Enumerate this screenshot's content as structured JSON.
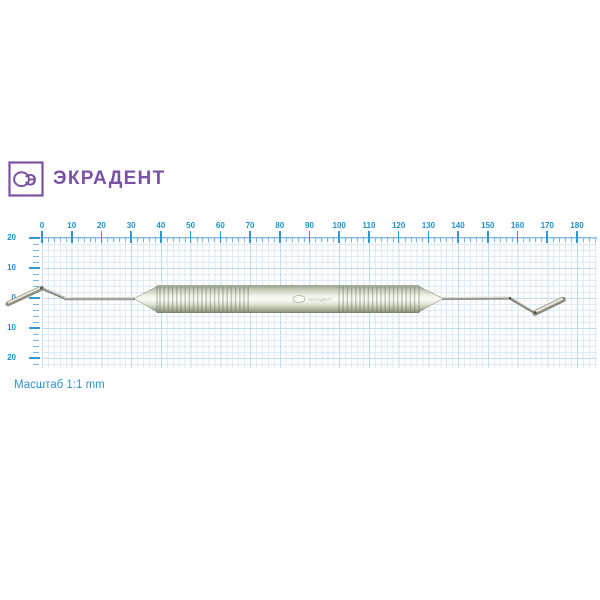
{
  "logo": {
    "text": "ЭКРАДЕНТ",
    "icon_glyph": "Э",
    "color": "#7b51a6"
  },
  "ruler": {
    "unit": "mm",
    "horizontal": {
      "labels": [
        "0",
        "10",
        "20",
        "30",
        "40",
        "50",
        "60",
        "70",
        "80",
        "90",
        "100",
        "110",
        "120",
        "130",
        "140",
        "150",
        "160",
        "170",
        "180"
      ],
      "major_step_mm": 10,
      "minor_step_mm": 2
    },
    "vertical": {
      "labels": [
        "20",
        "10",
        "0",
        "10",
        "20"
      ],
      "major_step_mm": 10,
      "minor_step_mm": 2
    },
    "label_color": "#1f90d1",
    "tick_color": "#2f99d5",
    "baseline_color": "#8ec4e6",
    "minor_tick_color": "#74b8e2",
    "grid_minor_color": "#dcebf6",
    "grid_major_color": "#c3dcee"
  },
  "scale_note": "Масштаб 1:1 mm",
  "instrument": {
    "name": "double-ended-dental-spatula",
    "engraving": "ЭКРАДЕНТ"
  }
}
